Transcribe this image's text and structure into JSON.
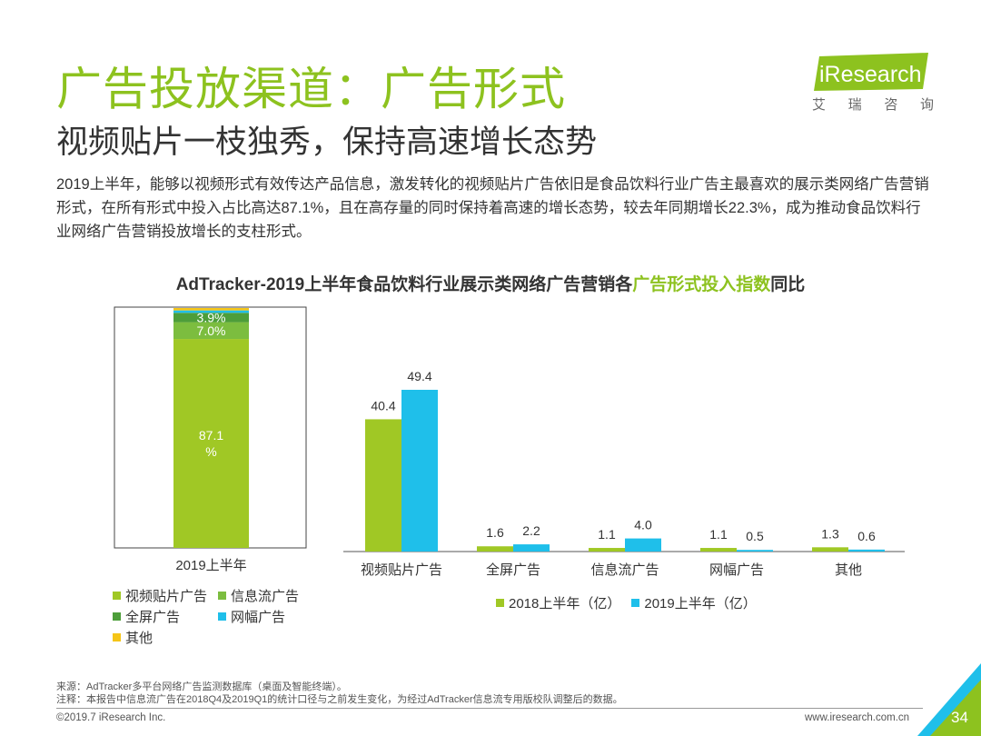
{
  "header": {
    "title": "广告投放渠道：广告形式",
    "subtitle": "视频贴片一枝独秀，保持高速增长态势",
    "logo_text": "iResearch",
    "logo_cn": [
      "艾",
      "瑞",
      "咨",
      "询"
    ]
  },
  "paragraph": "2019上半年，能够以视频形式有效传达产品信息，激发转化的视频贴片广告依旧是食品饮料行业广告主最喜欢的展示类网络广告营销形式，在所有形式中投入占比高达87.1%，且在高存量的同时保持着高速的增长态势，较去年同期增长22.3%，成为推动食品饮料行业网络广告营销投放增长的支柱形式。",
  "chart_title": {
    "part1": "AdTracker-2019上半年食品饮料行业展示类网络广告营销各",
    "highlight": "广告形式投入指数",
    "part2": "同比"
  },
  "chart_data": [
    {
      "type": "bar",
      "stacked": true,
      "categories": [
        "2019上半年"
      ],
      "series": [
        {
          "name": "视频贴片广告",
          "values": [
            87.1
          ],
          "label": "87.1\n%"
        },
        {
          "name": "信息流广告",
          "values": [
            7.0
          ],
          "label": "7.0%"
        },
        {
          "name": "全屏广告",
          "values": [
            3.9
          ],
          "label": "3.9%"
        },
        {
          "name": "网幅广告",
          "values": [
            1.0
          ],
          "label": ""
        },
        {
          "name": "其他",
          "values": [
            1.0
          ],
          "label": ""
        }
      ],
      "colors": [
        "#a0c825",
        "#7cbd3f",
        "#4d9e3a",
        "#1fbfea",
        "#f5c518"
      ],
      "ylim": [
        0,
        100
      ]
    },
    {
      "type": "bar",
      "categories": [
        "视频贴片广告",
        "全屏广告",
        "信息流广告",
        "网幅广告",
        "其他"
      ],
      "series": [
        {
          "name": "2018上半年（亿）",
          "values": [
            40.4,
            1.6,
            1.1,
            1.1,
            1.3
          ]
        },
        {
          "name": "2019上半年（亿）",
          "values": [
            49.4,
            2.2,
            4.0,
            0.5,
            0.6
          ]
        }
      ],
      "colors": [
        "#a0c825",
        "#1fbfea"
      ]
    }
  ],
  "footer": {
    "source": "来源：AdTracker多平台网络广告监测数据库（桌面及智能终端）。",
    "note": "注释：本报告中信息流广告在2018Q4及2019Q1的统计口径与之前发生变化，为经过AdTracker信息流专用版校队调整后的数据。",
    "copyright": "©2019.7 iResearch Inc.",
    "website": "www.iresearch.com.cn",
    "page": "34"
  }
}
